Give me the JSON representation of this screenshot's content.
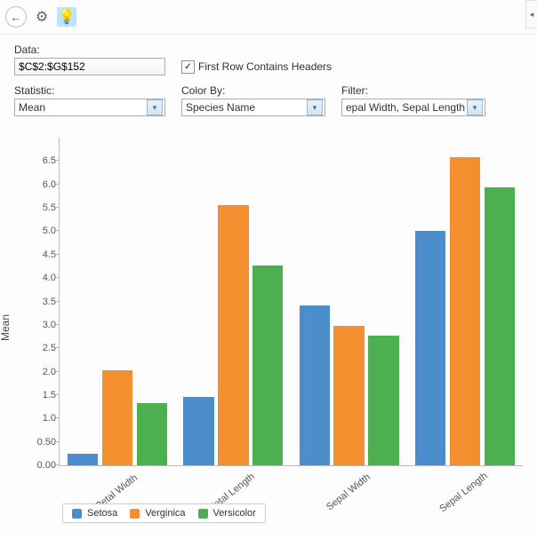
{
  "toolbar": {
    "back_icon": "←",
    "gear_icon": "⚙",
    "bulb_icon": "💡"
  },
  "form": {
    "data_label": "Data:",
    "data_value": "$C$2:$G$152",
    "first_row_label": "First Row Contains Headers",
    "first_row_checked": true,
    "statistic_label": "Statistic:",
    "statistic_value": "Mean",
    "colorby_label": "Color By:",
    "colorby_value": "Species Name",
    "filter_label": "Filter:",
    "filter_value": "epal Width, Sepal Length"
  },
  "chart": {
    "type": "grouped-bar",
    "y_title": "Mean",
    "ylim": [
      0.0,
      7.0
    ],
    "ytick_step": 0.5,
    "y_tick_labels": [
      "0.00",
      "0.50",
      "1.0",
      "1.5",
      "2.0",
      "2.5",
      "3.0",
      "3.5",
      "4.0",
      "4.5",
      "5.0",
      "5.5",
      "6.0",
      "6.5"
    ],
    "categories": [
      "Petal Width",
      "Petal Length",
      "Sepal Width",
      "Sepal Length"
    ],
    "series": [
      {
        "name": "Setosa",
        "color": "#4b8ecb",
        "values": [
          0.25,
          1.46,
          3.42,
          5.0
        ]
      },
      {
        "name": "Verginica",
        "color": "#f38f2f",
        "values": [
          2.03,
          5.55,
          2.97,
          6.59
        ]
      },
      {
        "name": "Versicolor",
        "color": "#4caf50",
        "values": [
          1.33,
          4.26,
          2.77,
          5.94
        ]
      }
    ],
    "bar_gap_inner": 0.04,
    "bar_gap_outer": 0.14,
    "background": "#ffffff",
    "axis_color": "#bbbbbb",
    "tick_font_size": 11
  },
  "side_expander_glyph": "◂"
}
